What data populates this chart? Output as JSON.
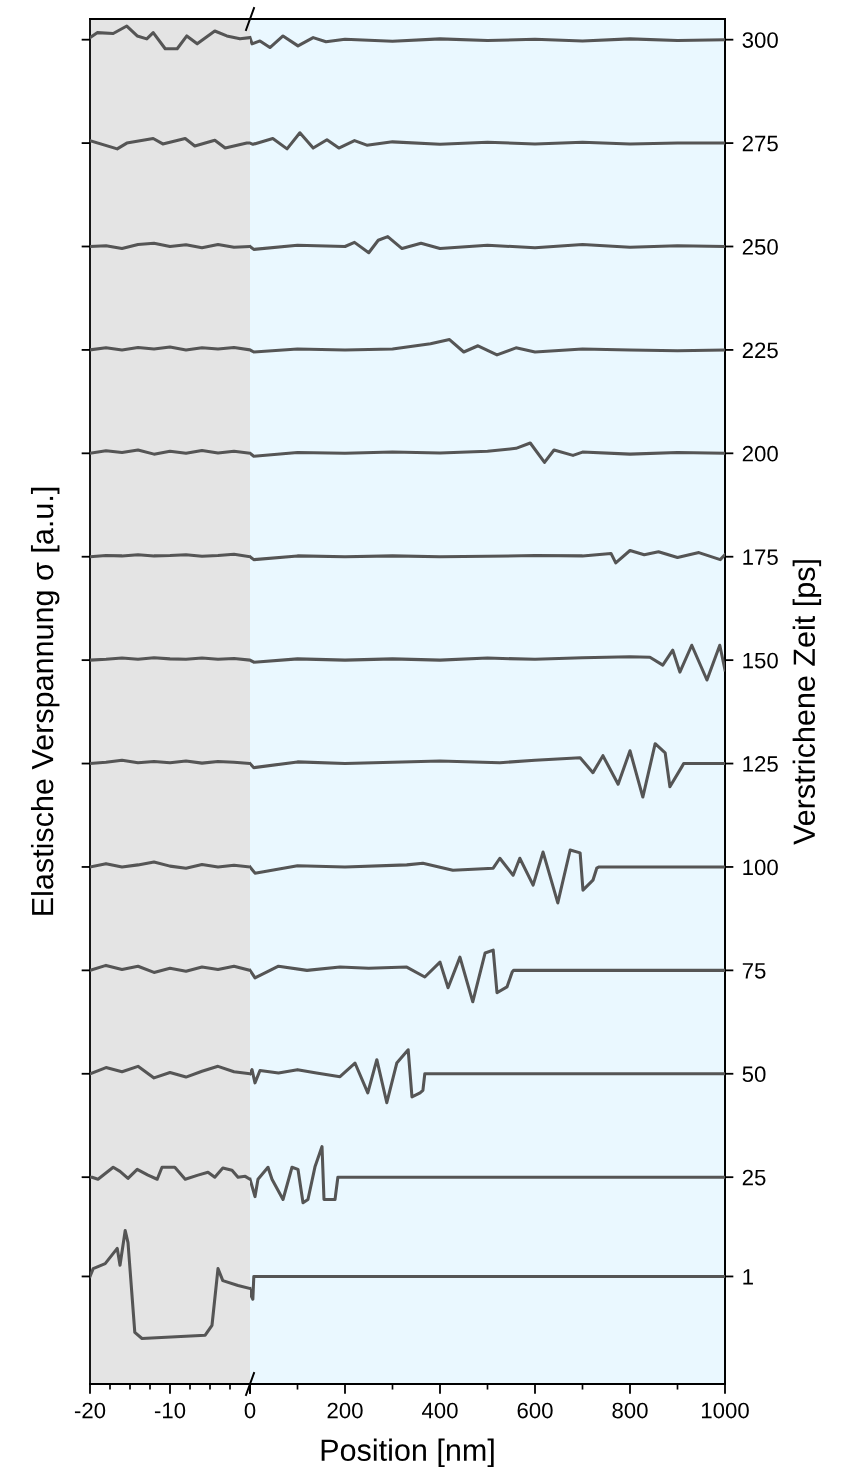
{
  "chart_data": [
    {
      "type": "line",
      "ylabel": "Elastische Verspannung σ [a.u.]",
      "xlim": [
        -20,
        0
      ],
      "xticks": [
        -20,
        -10,
        0
      ],
      "ylim": [
        -25,
        305
      ],
      "yticks": [
        1,
        25,
        50,
        75,
        100,
        125,
        150,
        175,
        200,
        225,
        250,
        275,
        300
      ],
      "tick_labels": "x",
      "grid": false,
      "bands": [
        {
          "axis": "x",
          "from": -20,
          "to": 0,
          "color": "#e4e4e4"
        }
      ],
      "series": [
        {
          "color": "#555555",
          "x": [
            -20,
            -19.6,
            -18.1,
            -16.6,
            -16.25,
            -15.6,
            -15.25,
            -14.4,
            -13.5,
            -5.6,
            -4.75,
            -4,
            -3.4,
            -1.5,
            0
          ],
          "values": [
            1,
            2.9,
            4.1,
            7.8,
            3.7,
            12.1,
            9.2,
            -12.5,
            -14,
            -13.2,
            -10.8,
            2.9,
            0,
            -1.2,
            -1.9
          ]
        },
        {
          "color": "#555555",
          "x": [
            -20,
            -19.75,
            -19,
            -17.1,
            -16.25,
            -15.25,
            -14.1,
            -12.75,
            -11.6,
            -11,
            -9.4,
            -8.1,
            -6.5,
            -5.25,
            -4.4,
            -3.4,
            -2.25,
            -1.5,
            -0.6,
            0
          ],
          "values": [
            25,
            25,
            24.5,
            27.4,
            26.4,
            24.7,
            26.9,
            25.5,
            24.5,
            27.4,
            27.4,
            24.5,
            25.5,
            26.2,
            25,
            27.2,
            26.7,
            25,
            25.2,
            24.5
          ]
        },
        {
          "color": "#555555",
          "x": [
            -20,
            -18,
            -16,
            -14,
            -12,
            -10,
            -8,
            -6,
            -4,
            -2,
            0
          ],
          "values": [
            50,
            51.5,
            50.5,
            51.8,
            49,
            50.3,
            49.2,
            50.6,
            51.8,
            50.5,
            50
          ]
        },
        {
          "color": "#555555",
          "x": [
            -20,
            -18,
            -16,
            -14,
            -12,
            -10,
            -8,
            -6,
            -4,
            -2,
            0
          ],
          "values": [
            75,
            76.2,
            75.2,
            76,
            74.5,
            75.5,
            74.8,
            75.8,
            75.2,
            76,
            75
          ]
        },
        {
          "color": "#555555",
          "x": [
            -20,
            -18,
            -16,
            -14,
            -12,
            -10,
            -8,
            -6,
            -4,
            -2,
            0
          ],
          "values": [
            100,
            100.8,
            100,
            100.5,
            101.2,
            100.2,
            99.7,
            100.6,
            100,
            100.4,
            100
          ]
        },
        {
          "color": "#555555",
          "x": [
            -20,
            -18,
            -16,
            -14,
            -12,
            -10,
            -8,
            -6,
            -4,
            -2,
            0
          ],
          "values": [
            125,
            125.3,
            125.8,
            125.2,
            125.5,
            125.2,
            125.6,
            125.1,
            125.5,
            125.3,
            125
          ]
        },
        {
          "color": "#555555",
          "x": [
            -20,
            -18,
            -16,
            -14,
            -12,
            -10,
            -8,
            -6,
            -4,
            -2,
            0
          ],
          "values": [
            150,
            150.2,
            150.5,
            150.2,
            150.6,
            150.3,
            150.2,
            150.5,
            150.2,
            150.4,
            150
          ]
        },
        {
          "color": "#555555",
          "x": [
            -20,
            -18,
            -16,
            -14,
            -12,
            -10,
            -8,
            -6,
            -4,
            -2,
            0
          ],
          "values": [
            175,
            175.3,
            175.2,
            175.5,
            175.2,
            175.3,
            175.5,
            175.1,
            175.3,
            175.6,
            175
          ]
        },
        {
          "color": "#555555",
          "x": [
            -20,
            -18,
            -16,
            -14,
            -12,
            -10,
            -8,
            -6,
            -4,
            -2,
            0
          ],
          "values": [
            200,
            200.6,
            200.2,
            200.8,
            199.8,
            200.5,
            200,
            200.7,
            200.1,
            200.5,
            200
          ]
        },
        {
          "color": "#555555",
          "x": [
            -20,
            -18,
            -16,
            -14,
            -12,
            -10,
            -8,
            -6,
            -4,
            -2,
            0
          ],
          "values": [
            225,
            225.5,
            225,
            225.6,
            225.2,
            225.7,
            225,
            225.5,
            225.2,
            225.6,
            225
          ]
        },
        {
          "color": "#555555",
          "x": [
            -20,
            -18,
            -16,
            -14,
            -12,
            -10,
            -8,
            -6,
            -4,
            -2,
            0
          ],
          "values": [
            250,
            250.2,
            249.5,
            250.5,
            250.8,
            250,
            250.4,
            249.7,
            250.5,
            249.8,
            250
          ]
        },
        {
          "color": "#555555",
          "x": [
            -20,
            -16.6,
            -15.4,
            -12.1,
            -10.9,
            -8.1,
            -6.9,
            -4.4,
            -3.1,
            -0.4,
            0
          ],
          "values": [
            275.6,
            273.6,
            275,
            276.1,
            274.8,
            276.1,
            274.3,
            275.7,
            273.8,
            275,
            275
          ]
        },
        {
          "color": "#555555",
          "x": [
            -20,
            -19.1,
            -17.1,
            -15.4,
            -14.1,
            -12.9,
            -12.1,
            -10.6,
            -9.1,
            -7.9,
            -6.6,
            -4.4,
            -2.9,
            -1.25,
            0
          ],
          "values": [
            300.5,
            301.7,
            301.5,
            303.3,
            300.9,
            300.2,
            301.7,
            297.8,
            297.8,
            300.9,
            299,
            302.1,
            300.9,
            300.2,
            300.5
          ]
        }
      ]
    },
    {
      "type": "line",
      "xlabel": "Position [nm]",
      "y2label": "Verstrichene Zeit [ps]",
      "xlim": [
        0,
        1000
      ],
      "xticks": [
        {
          "value": 0,
          "label": null
        },
        200,
        400,
        600,
        800,
        1000
      ],
      "y2lim": [
        -25,
        305
      ],
      "y2ticks": [
        1,
        25,
        50,
        75,
        100,
        125,
        150,
        175,
        200,
        225,
        250,
        275,
        300
      ],
      "grid": false,
      "bands": [
        {
          "axis": "x",
          "from": 0,
          "to": 1000,
          "color": "#eaf8ff"
        }
      ],
      "series": [
        {
          "color": "#555555",
          "axis": "y2",
          "x": [
            0,
            3,
            6,
            8,
            1000
          ],
          "values": [
            -1.9,
            -3.8,
            -4.5,
            1,
            1
          ]
        },
        {
          "color": "#555555",
          "axis": "y2",
          "x": [
            0,
            10.5,
            16.8,
            37.9,
            46.3,
            69.5,
            88.4,
            101,
            111.6,
            122,
            136.8,
            151.6,
            155.8,
            179,
            185,
            1000
          ],
          "values": [
            24.5,
            20.3,
            24.5,
            27.4,
            24.5,
            19.6,
            27.4,
            26.9,
            18.8,
            19.6,
            27.5,
            32.4,
            19.6,
            19.6,
            25,
            25
          ]
        },
        {
          "color": "#555555",
          "axis": "y2",
          "x": [
            0,
            4.2,
            10.5,
            21,
            60,
            100,
            140,
            189.5,
            221,
            248,
            267,
            288,
            309,
            333,
            341,
            358,
            364,
            368,
            1000
          ],
          "values": [
            50,
            51,
            47.8,
            50.8,
            50.2,
            51,
            50.2,
            49.3,
            52.6,
            45.4,
            53.4,
            43,
            52.6,
            55.8,
            44.4,
            45.4,
            46,
            50,
            50
          ]
        },
        {
          "color": "#555555",
          "axis": "y2",
          "x": [
            0,
            10.5,
            60,
            120,
            189.5,
            250,
            330,
            368,
            400,
            417,
            442,
            469,
            495,
            512,
            520,
            541,
            552,
            555,
            1000
          ],
          "values": [
            75,
            73.2,
            76,
            75,
            75.8,
            75.5,
            75.8,
            73.4,
            77,
            70.8,
            78.2,
            67.4,
            79.2,
            79.9,
            69.6,
            71,
            74.6,
            75,
            75
          ]
        },
        {
          "color": "#555555",
          "axis": "y2",
          "x": [
            0,
            10.5,
            100,
            200,
            330,
            364,
            427,
            512,
            526,
            554,
            568,
            596,
            617,
            648,
            674,
            695,
            701,
            722,
            730,
            735,
            1000
          ],
          "values": [
            100,
            98.5,
            100.3,
            100,
            100.5,
            100.9,
            99.2,
            99.7,
            102.1,
            98,
            102.1,
            95.6,
            103.6,
            91.3,
            104.1,
            103.4,
            94.4,
            96.8,
            99.7,
            100,
            100
          ]
        },
        {
          "color": "#555555",
          "axis": "y2",
          "x": [
            0,
            8,
            100,
            200,
            300,
            400,
            526,
            600,
            695,
            722,
            743,
            775,
            800,
            827,
            853,
            874,
            884,
            909,
            913,
            1000
          ],
          "values": [
            125,
            124,
            125.4,
            125,
            125.3,
            125.6,
            125.2,
            125.8,
            126.4,
            122.8,
            126.9,
            120,
            128.1,
            116.9,
            129.8,
            127.6,
            119.4,
            124.2,
            125,
            125
          ]
        },
        {
          "color": "#555555",
          "axis": "y2",
          "x": [
            0,
            8,
            100,
            200,
            300,
            400,
            500,
            600,
            700,
            800,
            842,
            869,
            890,
            905,
            930,
            962,
            989,
            1000
          ],
          "values": [
            150,
            149.5,
            150.3,
            150,
            150.3,
            150,
            150.5,
            150.2,
            150.6,
            150.8,
            150.7,
            148.8,
            152.4,
            147.1,
            153.6,
            145.2,
            153.6,
            147.6
          ]
        },
        {
          "color": "#555555",
          "axis": "y2",
          "x": [
            0,
            8,
            100,
            200,
            300,
            400,
            500,
            600,
            700,
            760,
            770,
            800,
            830,
            860,
            900,
            945,
            990,
            1000
          ],
          "values": [
            175,
            174.3,
            175.2,
            175,
            175.2,
            175,
            175.1,
            175.3,
            175.2,
            175.8,
            173.5,
            176.5,
            175.5,
            176.2,
            174.8,
            176,
            174.3,
            175.5
          ]
        },
        {
          "color": "#555555",
          "axis": "y2",
          "x": [
            0,
            8,
            100,
            200,
            300,
            400,
            500,
            560,
            590,
            620,
            640,
            680,
            700,
            800,
            900,
            1000
          ],
          "values": [
            200,
            199.3,
            200.2,
            200,
            200.3,
            200.1,
            200.5,
            201.2,
            202.5,
            197.8,
            200.8,
            199.5,
            200.3,
            199.8,
            200.2,
            200
          ]
        },
        {
          "color": "#555555",
          "axis": "y2",
          "x": [
            0,
            8,
            100,
            200,
            300,
            380,
            420,
            450,
            480,
            520,
            560,
            600,
            700,
            800,
            900,
            1000
          ],
          "values": [
            225,
            224.5,
            225.2,
            225,
            225.2,
            226.5,
            227.5,
            224.5,
            226,
            223.8,
            225.5,
            224.5,
            225.2,
            225,
            224.8,
            225
          ]
        },
        {
          "color": "#555555",
          "axis": "y2",
          "x": [
            0,
            8,
            100,
            200,
            220,
            250,
            270,
            290,
            320,
            360,
            400,
            500,
            600,
            700,
            800,
            900,
            1000
          ],
          "values": [
            250,
            249.3,
            250.3,
            250,
            251,
            248.5,
            251.5,
            252.4,
            249.5,
            250.8,
            249.5,
            250.3,
            249.7,
            250.5,
            249.8,
            250.2,
            250
          ]
        },
        {
          "color": "#555555",
          "axis": "y2",
          "x": [
            0,
            6.3,
            48,
            78,
            105,
            133,
            162,
            187,
            220,
            246,
            300,
            400,
            500,
            600,
            700,
            800,
            900,
            1000
          ],
          "values": [
            275,
            274.7,
            276.1,
            273.6,
            277.5,
            273.8,
            275.8,
            273.8,
            275.6,
            274.5,
            275.3,
            274.7,
            275.2,
            274.8,
            275.2,
            274.8,
            275,
            275
          ]
        },
        {
          "color": "#555555",
          "axis": "y2",
          "x": [
            0,
            4.2,
            21,
            42,
            69.5,
            101,
            133,
            160,
            200,
            300,
            400,
            500,
            600,
            700,
            800,
            900,
            1000
          ],
          "values": [
            300.5,
            299,
            299.7,
            298.1,
            300.9,
            298.5,
            300.5,
            299.5,
            300.1,
            299.6,
            300.2,
            299.8,
            300.1,
            299.7,
            300.2,
            299.8,
            300
          ]
        }
      ]
    }
  ]
}
